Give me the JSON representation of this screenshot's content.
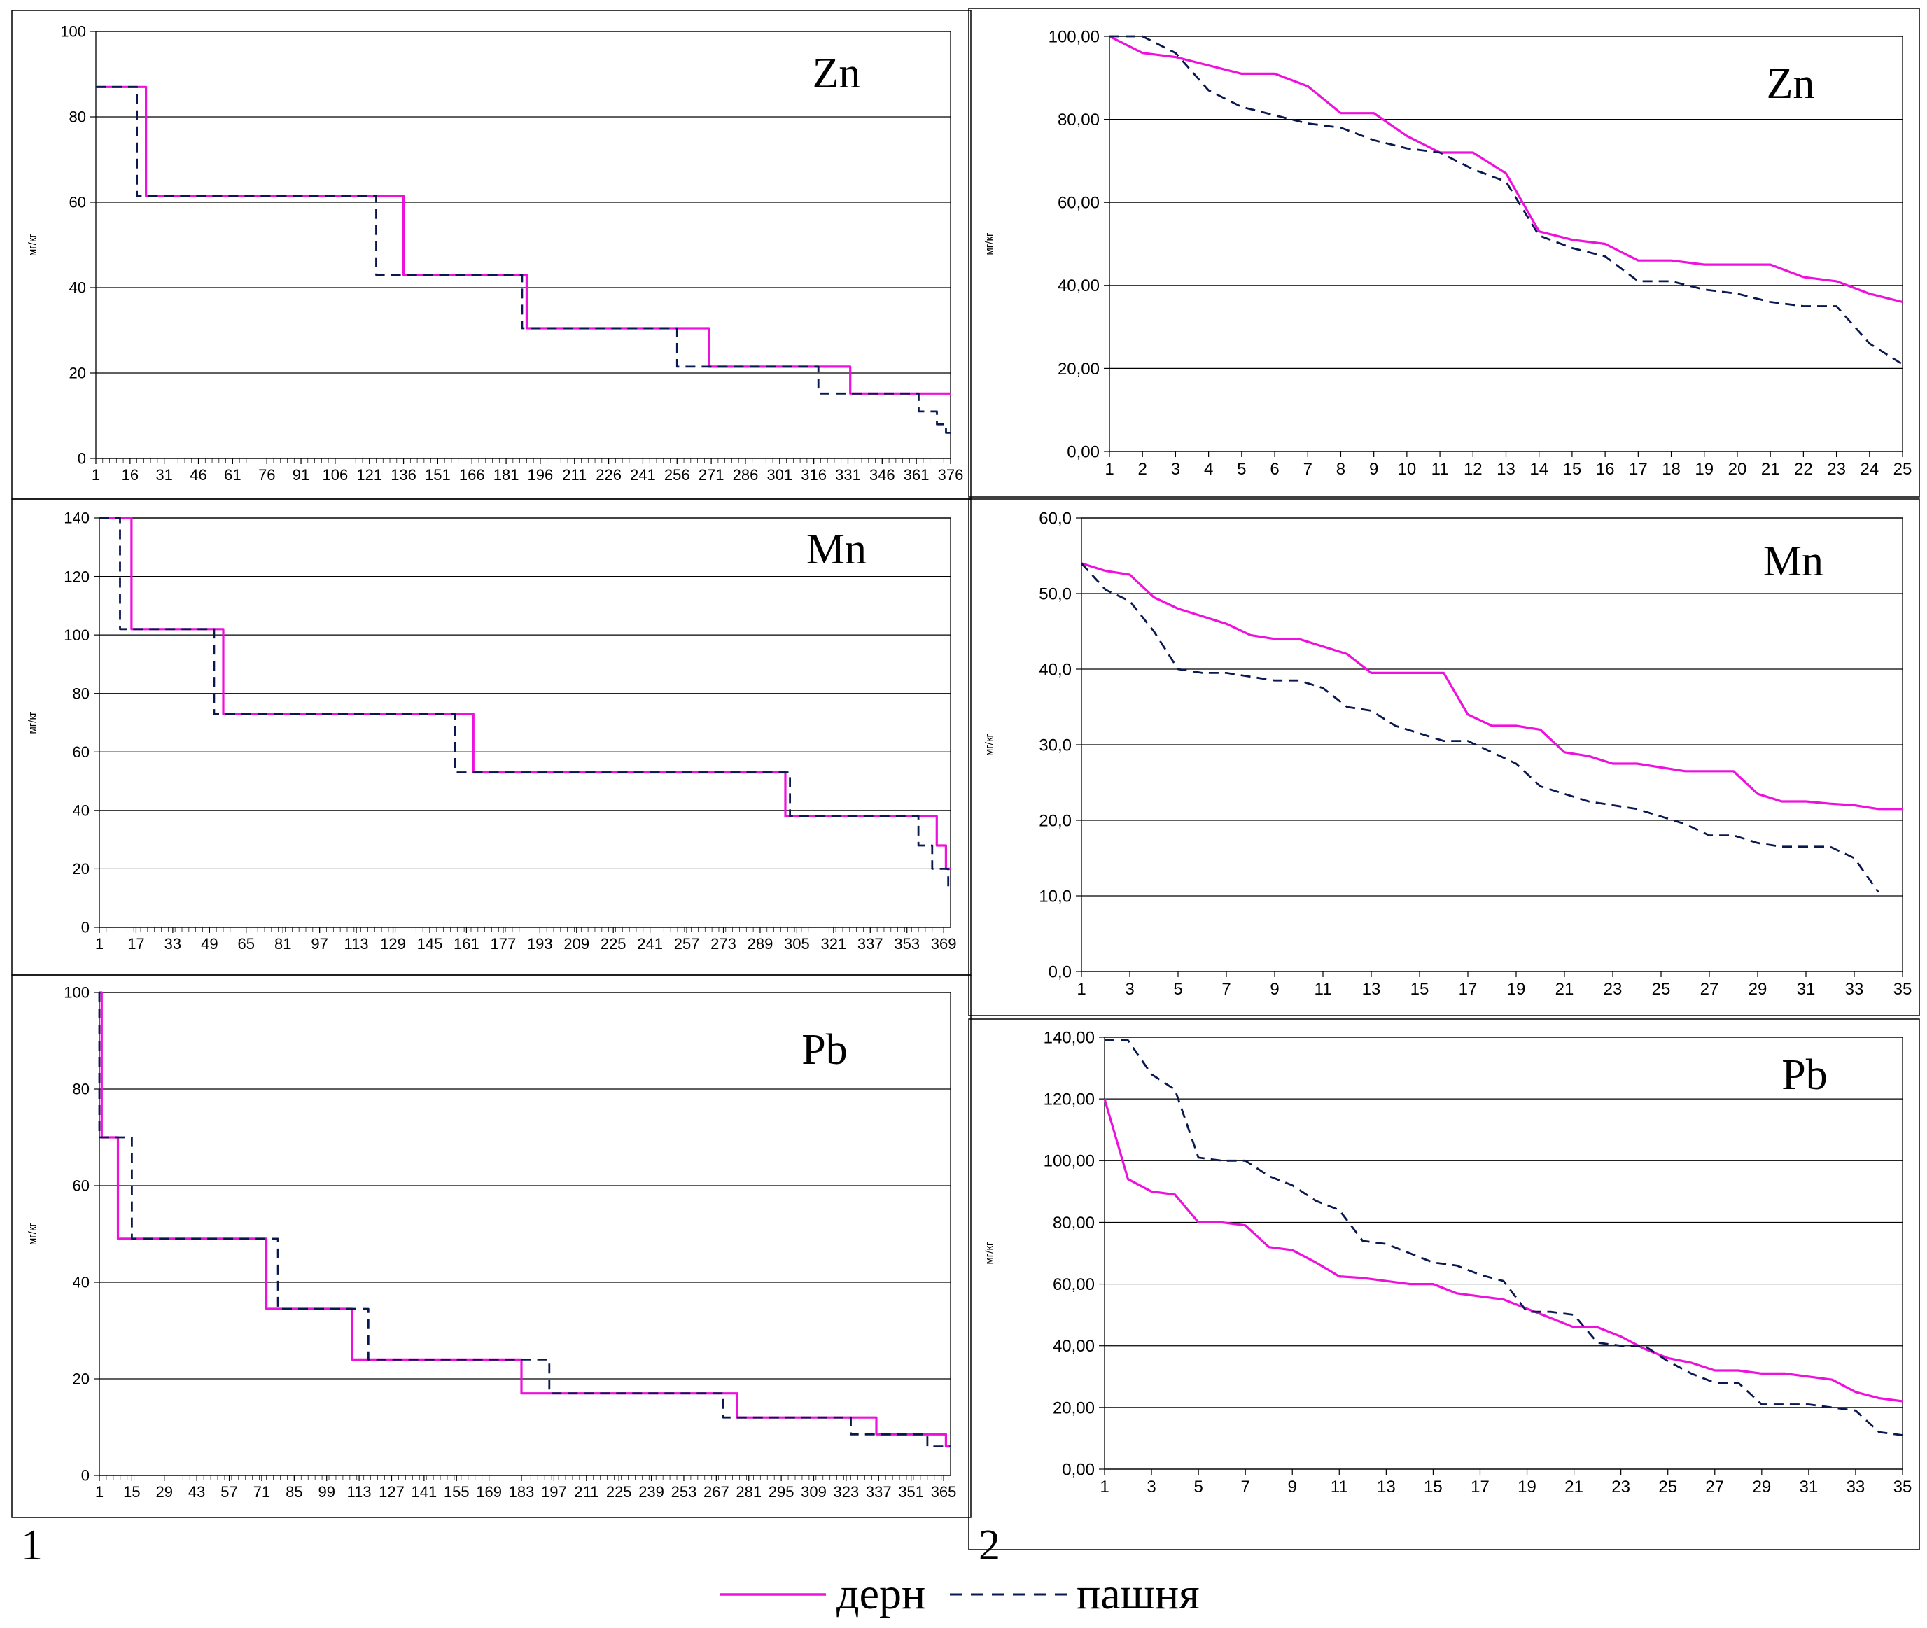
{
  "colors": {
    "sod": "#ee11dd",
    "plow": "#0a1850",
    "grid": "#000000"
  },
  "panel_labels": [
    "1",
    "2"
  ],
  "legend": {
    "sod": "дерн",
    "plow": "пашня"
  },
  "chart_data": [
    {
      "type": "line",
      "element": "Zn",
      "ylabel": "мг/кг",
      "ylim": [
        0,
        100
      ],
      "yticks": [
        "0",
        "20",
        "40",
        "60",
        "80",
        "100"
      ],
      "xlim": [
        1,
        376
      ],
      "xticks": [
        "1",
        "16",
        "31",
        "46",
        "61",
        "76",
        "91",
        "106",
        "121",
        "136",
        "151",
        "166",
        "181",
        "196",
        "211",
        "226",
        "241",
        "256",
        "271",
        "286",
        "301",
        "316",
        "331",
        "346",
        "361",
        "376"
      ],
      "series": [
        {
          "name": "дерн",
          "x": [
            1,
            23,
            23,
            136,
            136,
            190,
            190,
            270,
            270,
            332,
            332,
            376
          ],
          "y": [
            87,
            87,
            61.5,
            61.5,
            43,
            43,
            30.5,
            30.5,
            21.5,
            21.5,
            15.2,
            15.2
          ]
        },
        {
          "name": "пашня",
          "x": [
            1,
            19,
            19,
            124,
            124,
            188,
            188,
            256,
            256,
            318,
            318,
            362,
            362,
            370,
            370,
            374,
            374,
            376
          ],
          "y": [
            87,
            87,
            61.5,
            61.5,
            43,
            43,
            30.5,
            30.5,
            21.5,
            21.5,
            15.2,
            15.2,
            11,
            11,
            8,
            8,
            6,
            6
          ]
        }
      ]
    },
    {
      "type": "line",
      "element": "Zn",
      "ylabel": "мг/кг",
      "ylim": [
        0,
        100
      ],
      "yticks": [
        "0,00",
        "20,00",
        "40,00",
        "60,00",
        "80,00",
        "100,00"
      ],
      "xlim": [
        1,
        25
      ],
      "xticks": [
        "1",
        "2",
        "3",
        "4",
        "5",
        "6",
        "7",
        "8",
        "9",
        "10",
        "11",
        "12",
        "13",
        "14",
        "15",
        "16",
        "17",
        "18",
        "19",
        "20",
        "21",
        "22",
        "23",
        "24",
        "25"
      ],
      "series": [
        {
          "name": "дерн",
          "x": [
            1,
            2,
            3,
            4,
            5,
            6,
            7,
            8,
            9,
            10,
            11,
            12,
            13,
            14,
            15,
            16,
            17,
            18,
            19,
            20,
            21,
            22,
            23,
            24,
            25
          ],
          "y": [
            100,
            96,
            95,
            93,
            91,
            91,
            88,
            81.5,
            81.5,
            76,
            72,
            72,
            67,
            53,
            51,
            50,
            46,
            46,
            45,
            45,
            45,
            42,
            41,
            38,
            36
          ]
        },
        {
          "name": "пашня",
          "x": [
            1,
            2,
            3,
            4,
            5,
            6,
            7,
            8,
            9,
            10,
            11,
            12,
            13,
            14,
            15,
            16,
            17,
            18,
            19,
            20,
            21,
            22,
            23,
            24,
            25
          ],
          "y": [
            100,
            100,
            96,
            87,
            83,
            81,
            79,
            78,
            75,
            73,
            72,
            68,
            65,
            52,
            49,
            47,
            41,
            41,
            39,
            38,
            36,
            35,
            35,
            26,
            21
          ]
        }
      ]
    },
    {
      "type": "line",
      "element": "Mn",
      "ylabel": "мг/кг",
      "ylim": [
        0,
        140
      ],
      "yticks": [
        "0",
        "20",
        "40",
        "60",
        "80",
        "100",
        "120",
        "140"
      ],
      "xlim": [
        1,
        372
      ],
      "xticks": [
        "1",
        "17",
        "33",
        "49",
        "65",
        "81",
        "97",
        "113",
        "129",
        "145",
        "161",
        "177",
        "193",
        "209",
        "225",
        "241",
        "257",
        "273",
        "289",
        "305",
        "321",
        "337",
        "353",
        "369"
      ],
      "series": [
        {
          "name": "дерн",
          "x": [
            1,
            15,
            15,
            55,
            55,
            164,
            164,
            300,
            300,
            366,
            366,
            370,
            370,
            372
          ],
          "y": [
            140,
            140,
            102,
            102,
            73,
            73,
            53,
            53,
            38,
            38,
            28,
            28,
            20,
            20
          ]
        },
        {
          "name": "пашня",
          "x": [
            1,
            10,
            10,
            51,
            51,
            156,
            156,
            302,
            302,
            358,
            358,
            364,
            364,
            371,
            371,
            372
          ],
          "y": [
            140,
            140,
            102,
            102,
            73,
            73,
            53,
            53,
            38,
            38,
            28,
            28,
            20,
            20,
            14,
            14
          ]
        }
      ]
    },
    {
      "type": "line",
      "element": "Mn",
      "ylabel": "мг/кг",
      "ylim": [
        0,
        60
      ],
      "yticks": [
        "0,0",
        "10,0",
        "20,0",
        "30,0",
        "40,0",
        "50,0",
        "60,0"
      ],
      "xlim": [
        1,
        35
      ],
      "xticks": [
        "1",
        "3",
        "5",
        "7",
        "9",
        "11",
        "13",
        "15",
        "17",
        "19",
        "21",
        "23",
        "25",
        "27",
        "29",
        "31",
        "33",
        "35"
      ],
      "series": [
        {
          "name": "дерн",
          "x": [
            1,
            2,
            3,
            4,
            5,
            6,
            7,
            8,
            9,
            10,
            11,
            12,
            13,
            14,
            15,
            16,
            17,
            18,
            19,
            20,
            21,
            22,
            23,
            24,
            25,
            26,
            27,
            28,
            29,
            30,
            31,
            32,
            33,
            34,
            35
          ],
          "y": [
            54,
            53,
            52.5,
            49.5,
            48,
            47,
            46,
            44.5,
            44,
            44,
            43,
            42,
            39.5,
            39.5,
            39.5,
            39.5,
            34,
            32.5,
            32.5,
            32,
            29,
            28.5,
            27.5,
            27.5,
            27,
            26.5,
            26.5,
            26.5,
            23.5,
            22.5,
            22.5,
            22.2,
            22,
            21.5,
            21.5
          ]
        },
        {
          "name": "пашня",
          "x": [
            1,
            2,
            3,
            4,
            5,
            6,
            7,
            8,
            9,
            10,
            11,
            12,
            13,
            14,
            15,
            16,
            17,
            18,
            19,
            20,
            21,
            22,
            23,
            24,
            25,
            26,
            27,
            28,
            29,
            30,
            31,
            32,
            33,
            34
          ],
          "y": [
            54,
            50.5,
            49,
            45,
            40,
            39.5,
            39.5,
            39,
            38.5,
            38.5,
            37.5,
            35,
            34.5,
            32.5,
            31.5,
            30.5,
            30.5,
            29,
            27.5,
            24.5,
            23.5,
            22.5,
            22,
            21.5,
            20.5,
            19.5,
            18,
            18,
            17,
            16.5,
            16.5,
            16.5,
            15,
            10.5
          ]
        }
      ]
    },
    {
      "type": "line",
      "element": "Pb",
      "ylabel": "мг/кг",
      "ylim": [
        0,
        100
      ],
      "yticks": [
        "0",
        "20",
        "40",
        "60",
        "80",
        "100"
      ],
      "xlim": [
        1,
        368
      ],
      "xticks": [
        "1",
        "15",
        "29",
        "43",
        "57",
        "71",
        "85",
        "99",
        "113",
        "127",
        "141",
        "155",
        "169",
        "183",
        "197",
        "211",
        "225",
        "239",
        "253",
        "267",
        "281",
        "295",
        "309",
        "323",
        "337",
        "351",
        "365"
      ],
      "series": [
        {
          "name": "дерн",
          "x": [
            1,
            2,
            2,
            9,
            9,
            73,
            73,
            110,
            110,
            183,
            183,
            276,
            276,
            336,
            336,
            366,
            366,
            368
          ],
          "y": [
            100,
            100,
            70,
            70,
            49,
            49,
            34.5,
            34.5,
            24,
            24,
            17,
            17,
            12,
            12,
            8.5,
            8.5,
            6,
            6
          ]
        },
        {
          "name": "пашня",
          "x": [
            1,
            1,
            15,
            15,
            78,
            78,
            117,
            117,
            195,
            195,
            270,
            270,
            325,
            325,
            358,
            358,
            368
          ],
          "y": [
            100,
            70,
            70,
            49,
            49,
            34.5,
            34.5,
            24,
            24,
            17,
            17,
            12,
            12,
            8.5,
            8.5,
            6,
            6
          ]
        }
      ]
    },
    {
      "type": "line",
      "element": "Pb",
      "ylabel": "мг/кг",
      "ylim": [
        0,
        140
      ],
      "yticks": [
        "0,00",
        "20,00",
        "40,00",
        "60,00",
        "80,00",
        "100,00",
        "120,00",
        "140,00"
      ],
      "xlim": [
        1,
        35
      ],
      "xticks": [
        "1",
        "3",
        "5",
        "7",
        "9",
        "11",
        "13",
        "15",
        "17",
        "19",
        "21",
        "23",
        "25",
        "27",
        "29",
        "31",
        "33",
        "35"
      ],
      "series": [
        {
          "name": "дерн",
          "x": [
            1,
            2,
            3,
            4,
            5,
            6,
            7,
            8,
            9,
            10,
            11,
            12,
            13,
            14,
            15,
            16,
            17,
            18,
            19,
            20,
            21,
            22,
            23,
            24,
            25,
            26,
            27,
            28,
            29,
            30,
            31,
            32,
            33,
            34,
            35
          ],
          "y": [
            120,
            94,
            90,
            89,
            80,
            80,
            79,
            72,
            71,
            67,
            62.5,
            62,
            61,
            60,
            60,
            57,
            56,
            55,
            52,
            49,
            46,
            46,
            43,
            39,
            36,
            34.5,
            32,
            32,
            31,
            31,
            30,
            29,
            25,
            23,
            22
          ]
        },
        {
          "name": "пашня",
          "x": [
            1,
            2,
            3,
            4,
            5,
            6,
            7,
            8,
            9,
            10,
            11,
            12,
            13,
            14,
            15,
            16,
            17,
            18,
            19,
            20,
            21,
            22,
            23,
            24,
            25,
            26,
            27,
            28,
            29,
            30,
            31,
            32,
            33,
            34,
            35
          ],
          "y": [
            139,
            139,
            128,
            123,
            101,
            100,
            100,
            95,
            92,
            87,
            84,
            74,
            73,
            70,
            67,
            66,
            63,
            61,
            51,
            51,
            50,
            41,
            40,
            40,
            35,
            31,
            28,
            28,
            21,
            21,
            21,
            20,
            19,
            12,
            11
          ]
        }
      ]
    }
  ]
}
